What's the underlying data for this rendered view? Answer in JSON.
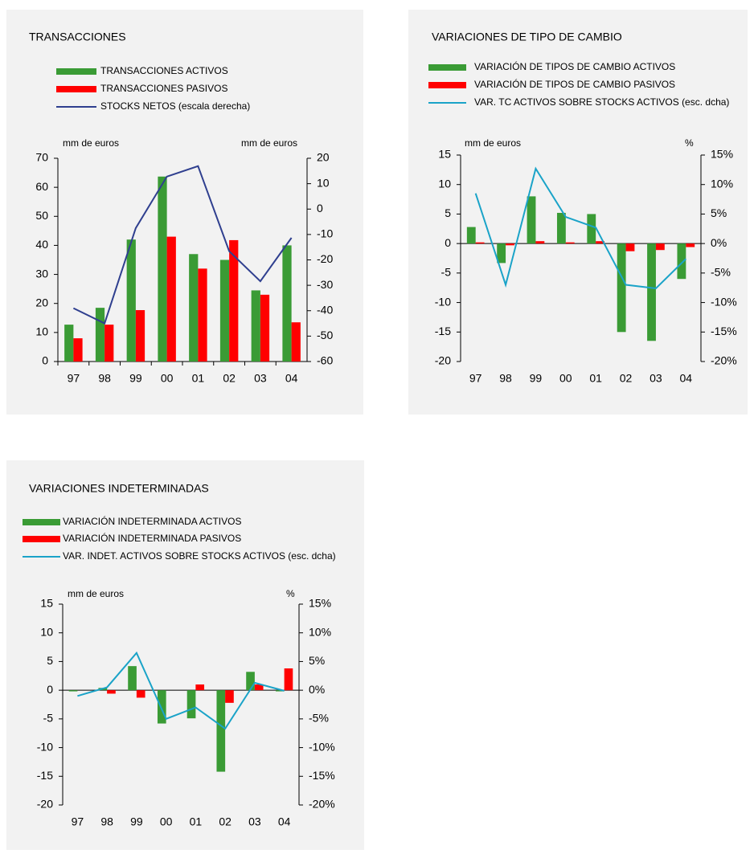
{
  "chart_data": [
    {
      "type": "bar",
      "title": "TRANSACCIONES",
      "y_label": "mm de euros",
      "y2_label": "mm de euros",
      "categories": [
        "97",
        "98",
        "99",
        "00",
        "01",
        "02",
        "03",
        "04"
      ],
      "series": [
        {
          "name": "TRANSACCIONES ACTIVOS",
          "color": "#3a9b35",
          "values": [
            12.7,
            18.5,
            42,
            63.7,
            37,
            35,
            24.5,
            40
          ]
        },
        {
          "name": "TRANSACCIONES PASIVOS",
          "color": "#ff0000",
          "values": [
            8,
            12.7,
            17.7,
            43,
            32,
            41.8,
            23,
            13.5
          ]
        },
        {
          "name": "STOCKS NETOS (escala derecha)",
          "color": "#2f3f8f",
          "type": "line",
          "axis": "y2",
          "values": [
            -39,
            -45,
            -7.5,
            12.8,
            16.9,
            -16.6,
            -28.4,
            -11.3
          ]
        }
      ],
      "ylim": [
        0,
        70
      ],
      "yticks": [
        0,
        10,
        20,
        30,
        40,
        50,
        60,
        70
      ],
      "y2lim": [
        -60,
        20
      ],
      "y2ticks": [
        -60,
        -50,
        -40,
        -30,
        -20,
        -10,
        0,
        10,
        20
      ],
      "grid": false
    },
    {
      "type": "bar",
      "title": "VARIACIONES DE TIPO DE CAMBIO",
      "y_label": "mm de euros",
      "y2_label": "%",
      "categories": [
        "97",
        "98",
        "99",
        "00",
        "01",
        "02",
        "03",
        "04"
      ],
      "series": [
        {
          "name": "VARIACIÓN DE TIPOS DE CAMBIO ACTIVOS",
          "color": "#3a9b35",
          "values": [
            2.8,
            -3.3,
            8,
            5.2,
            5,
            -15,
            -16.5,
            -6
          ]
        },
        {
          "name": "VARIACIÓN DE TIPOS DE CAMBIO PASIVOS",
          "color": "#ff0000",
          "values": [
            0.2,
            -0.3,
            0.4,
            0.2,
            0.4,
            -1.3,
            -1.1,
            -0.6
          ]
        },
        {
          "name": "VAR. TC ACTIVOS SOBRE STOCKS ACTIVOS (esc. dcha)",
          "color": "#1aa3c8",
          "type": "line",
          "axis": "y2",
          "values": [
            8.5,
            -7,
            12.7,
            4.5,
            2.7,
            -7,
            -7.6,
            -2.6
          ]
        }
      ],
      "ylim": [
        -20,
        15
      ],
      "yticks": [
        -20,
        -15,
        -10,
        -5,
        0,
        5,
        10,
        15
      ],
      "y2lim": [
        -20,
        15
      ],
      "y2ticks": [
        {
          "value": -20,
          "label": "-20%"
        },
        {
          "value": -15,
          "label": "-15%"
        },
        {
          "value": -10,
          "label": "-10%"
        },
        {
          "value": -5,
          "label": "-5%"
        },
        {
          "value": 0,
          "label": "0%"
        },
        {
          "value": 5,
          "label": "5%"
        },
        {
          "value": 10,
          "label": "10%"
        },
        {
          "value": 15,
          "label": "15%"
        }
      ],
      "grid": false
    },
    {
      "type": "bar",
      "title": "VARIACIONES INDETERMINADAS",
      "y_label": "mm de euros",
      "y2_label": "%",
      "categories": [
        "97",
        "98",
        "99",
        "00",
        "01",
        "02",
        "03",
        "04"
      ],
      "series": [
        {
          "name": "VARIACIÓN INDETERMINADA ACTIVOS",
          "color": "#3a9b35",
          "values": [
            -0.2,
            0.4,
            4.2,
            -5.8,
            -4.9,
            -14.2,
            3.2,
            -0.2
          ]
        },
        {
          "name": "VARIACIÓN INDETERMINADA PASIVOS",
          "color": "#ff0000",
          "values": [
            0,
            -0.6,
            -1.3,
            0,
            1,
            -2.2,
            1,
            3.8
          ]
        },
        {
          "name": "VAR. INDET. ACTIVOS SOBRE STOCKS ACTIVOS (esc. dcha)",
          "color": "#1aa3c8",
          "type": "line",
          "axis": "y2",
          "values": [
            -1,
            0.5,
            6.5,
            -5,
            -3,
            -6.7,
            1.3,
            -0.1
          ]
        }
      ],
      "ylim": [
        -20,
        15
      ],
      "yticks": [
        -20,
        -15,
        -10,
        -5,
        0,
        5,
        10,
        15
      ],
      "y2lim": [
        -20,
        15
      ],
      "y2ticks": [
        {
          "value": -20,
          "label": "-20%"
        },
        {
          "value": -15,
          "label": "-15%"
        },
        {
          "value": -10,
          "label": "-10%"
        },
        {
          "value": -5,
          "label": "-5%"
        },
        {
          "value": 0,
          "label": "0%"
        },
        {
          "value": 5,
          "label": "5%"
        },
        {
          "value": 10,
          "label": "10%"
        },
        {
          "value": 15,
          "label": "15%"
        }
      ],
      "grid": false
    }
  ]
}
